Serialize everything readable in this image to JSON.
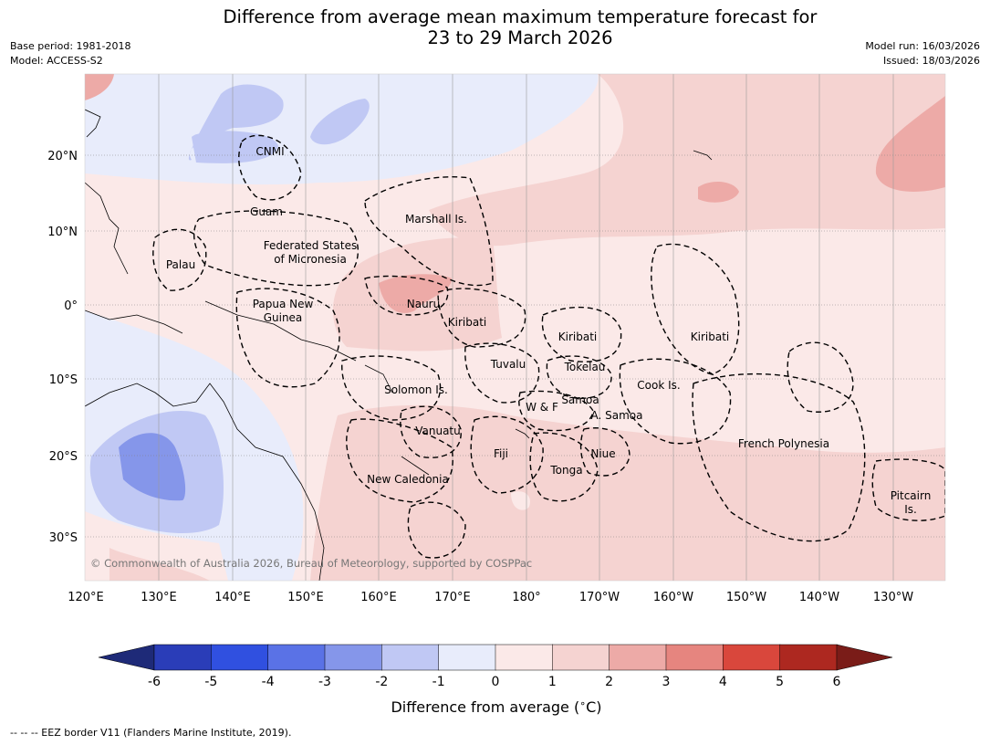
{
  "title_line1": "Difference from average mean maximum temperature forecast for",
  "title_line2": "23 to 29 March 2026",
  "base_period": "Base period: 1981-2018",
  "model": "Model: ACCESS-S2",
  "model_run": "Model run: 16/03/2026",
  "issued": "Issued: 18/03/2026",
  "copyright": "© Commonwealth of Australia 2026, Bureau of Meteorology, supported by COSPPac",
  "footer_legend": "--  --  -- EEZ border V11 (Flanders Marine Institute, 2019).",
  "lat_labels": [
    "20°N",
    "10°N",
    "0°",
    "10°S",
    "20°S",
    "30°S"
  ],
  "lon_labels": [
    "120°E",
    "130°E",
    "140°E",
    "150°E",
    "160°E",
    "170°E",
    "180°",
    "170°W",
    "160°W",
    "150°W",
    "140°W",
    "130°W"
  ],
  "regions": [
    "CNMI",
    "Guam",
    "Marshall Is.",
    "Federated States",
    "of Micronesia",
    "Palau",
    "Papua New",
    "Guinea",
    "Nauru",
    "Kiribati",
    "Kiribati",
    "Kiribati",
    "Tuvalu",
    "Tokelau",
    "Cook Is.",
    "Solomon Is.",
    "W & F",
    "Samoa",
    "A. Samoa",
    "Vanuatu",
    "Fiji",
    "Niue",
    "Tonga",
    "New Caledonia",
    "French Polynesia",
    "Pitcairn",
    "Is."
  ],
  "colorbar": {
    "label": "Difference from average ($^\\circ$C)",
    "tick_labels": [
      "-6",
      "-5",
      "-4",
      "-3",
      "-2",
      "-1",
      "0",
      "1",
      "2",
      "3",
      "4",
      "5",
      "6"
    ],
    "colors": [
      "#1e2a78",
      "#2a3db8",
      "#3050e0",
      "#5a72e6",
      "#8596ea",
      "#c0c8f4",
      "#e8ecfb",
      "#fbe9e8",
      "#f5d3d1",
      "#edaaa7",
      "#e6857f",
      "#d9473c",
      "#ad2820",
      "#7a1c18"
    ]
  },
  "colors": {
    "background_map": "#fbe9e8",
    "land_line": "#000000"
  }
}
